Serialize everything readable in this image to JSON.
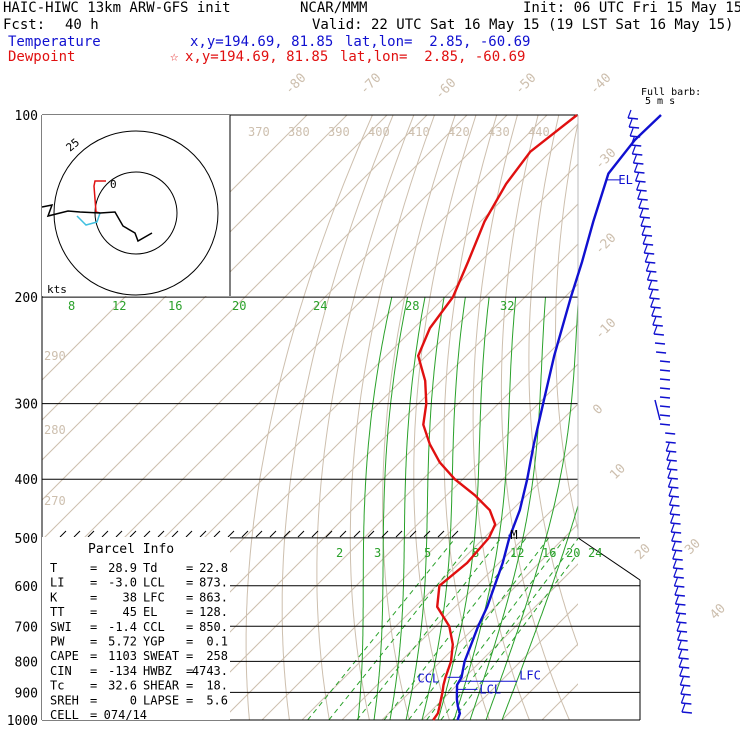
{
  "header": {
    "model": "HAIC-HIWC 13km ARW-GFS init",
    "org": "NCAR/MMM",
    "init": "Init: 06 UTC Fri 15 May 15",
    "fcst_label": "Fcst:",
    "fcst_value": "40 h",
    "valid": "Valid: 22 UTC Sat 16 May 15 (19 LST Sat 16 May 15)",
    "temperature_label": "Temperature",
    "temperature_xy": "x,y=194.69, 81.85",
    "temperature_latlon": "lat,lon=  2.85, -60.69",
    "dewpoint_label": "Dewpoint",
    "dewpoint_xy": "x,y=194.69, 81.85",
    "dewpoint_latlon": "lat,lon=  2.85, -60.69"
  },
  "barb_legend": {
    "line1": "Full barb:",
    "line2": "5 m s"
  },
  "hodograph": {
    "ring_label": "25",
    "center_label": "0",
    "units": "kts"
  },
  "parcel_info": {
    "title": "Parcel Info",
    "rows": [
      {
        "l_label": "T",
        "l_value": "28.9",
        "r_label": "Td",
        "r_value": "22.8"
      },
      {
        "l_label": "LI",
        "l_value": "-3.0",
        "r_label": "LCL",
        "r_value": "873."
      },
      {
        "l_label": "K",
        "l_value": "38",
        "r_label": "LFC",
        "r_value": "863."
      },
      {
        "l_label": "TT",
        "l_value": "45",
        "r_label": "EL",
        "r_value": "128."
      },
      {
        "l_label": "SWI",
        "l_value": "-1.4",
        "r_label": "CCL",
        "r_value": "850."
      },
      {
        "l_label": "PW",
        "l_value": "5.72",
        "r_label": "YGP",
        "r_value": "0.1"
      },
      {
        "l_label": "CAPE",
        "l_value": "1103",
        "r_label": "SWEAT",
        "r_value": "258"
      },
      {
        "l_label": "CIN",
        "l_value": "-134",
        "r_label": "HWBZ",
        "r_value": "4743."
      },
      {
        "l_label": "Tc",
        "l_value": "32.6",
        "r_label": "SHEAR",
        "r_value": "18."
      },
      {
        "l_label": "SREH",
        "l_value": "0",
        "r_label": "LAPSE",
        "r_value": "5.6"
      },
      {
        "l_label": "CELL",
        "l_value": "074/14",
        "r_label": "",
        "r_value": ""
      }
    ]
  },
  "chart_data": {
    "type": "line",
    "subtype": "skew-T log-P sounding",
    "y_axis": {
      "unit": "hPa",
      "scale": "log",
      "range": [
        1000,
        100
      ],
      "ticks": [
        "100",
        "200",
        "300",
        "400",
        "500",
        "600",
        "700",
        "800",
        "900",
        "1000"
      ]
    },
    "isotherm_labels": [
      "-80",
      "-70",
      "-60",
      "-50",
      "-40",
      "-30",
      "-20",
      "-10",
      "0",
      "10",
      "20",
      "30",
      "40"
    ],
    "theta_labels_top": [
      "370",
      "380",
      "390",
      "400",
      "410",
      "420",
      "430",
      "440"
    ],
    "theta_labels_left": [
      "290",
      "280",
      "270"
    ],
    "mixing_ratio_labels_upper": [
      "8",
      "12",
      "16",
      "20",
      "24",
      "28",
      "32"
    ],
    "mixing_ratio_labels_lower": [
      "2",
      "3",
      "5",
      "8",
      "12",
      "16",
      "20",
      "24"
    ],
    "levels": [
      {
        "name": "EL",
        "p": 128
      },
      {
        "name": "M",
        "p": 495
      },
      {
        "name": "CCL",
        "p": 850
      },
      {
        "name": "LCL",
        "p": 873
      },
      {
        "name": "LFC",
        "p": 863
      }
    ],
    "series": [
      {
        "name": "Temperature",
        "color": "#1010d0",
        "points": [
          [
            1000,
            28.9
          ],
          [
            975,
            27.8
          ],
          [
            950,
            25.6
          ],
          [
            925,
            23.6
          ],
          [
            900,
            21.8
          ],
          [
            875,
            20.0
          ],
          [
            850,
            19.2
          ],
          [
            800,
            16.0
          ],
          [
            750,
            13.4
          ],
          [
            700,
            10.6
          ],
          [
            650,
            8.0
          ],
          [
            600,
            4.6
          ],
          [
            550,
            0.9
          ],
          [
            500,
            -3.7
          ],
          [
            450,
            -8.0
          ],
          [
            400,
            -13.9
          ],
          [
            350,
            -21.0
          ],
          [
            300,
            -28.8
          ],
          [
            250,
            -38.0
          ],
          [
            200,
            -48.5
          ],
          [
            175,
            -54.5
          ],
          [
            150,
            -61.8
          ],
          [
            125,
            -70.0
          ],
          [
            110,
            -71.8
          ],
          [
            100,
            -71.5
          ]
        ]
      },
      {
        "name": "Dewpoint",
        "color": "#e01010",
        "points": [
          [
            1000,
            22.8
          ],
          [
            975,
            22.3
          ],
          [
            950,
            21.0
          ],
          [
            925,
            19.6
          ],
          [
            900,
            18.2
          ],
          [
            875,
            16.6
          ],
          [
            850,
            15.2
          ],
          [
            800,
            12.6
          ],
          [
            750,
            8.8
          ],
          [
            700,
            3.4
          ],
          [
            650,
            -4.5
          ],
          [
            600,
            -9.2
          ],
          [
            550,
            -8.0
          ],
          [
            500,
            -8.8
          ],
          [
            475,
            -10.6
          ],
          [
            450,
            -15.5
          ],
          [
            425,
            -23.0
          ],
          [
            400,
            -32.0
          ],
          [
            375,
            -40.0
          ],
          [
            350,
            -47.0
          ],
          [
            325,
            -53.5
          ],
          [
            300,
            -58.0
          ],
          [
            275,
            -64.0
          ],
          [
            250,
            -72.0
          ],
          [
            225,
            -76.0
          ],
          [
            200,
            -78.0
          ],
          [
            175,
            -83.0
          ],
          [
            150,
            -89.0
          ],
          [
            130,
            -93.0
          ],
          [
            115,
            -95.0
          ],
          [
            100,
            -92.5
          ]
        ]
      }
    ]
  }
}
